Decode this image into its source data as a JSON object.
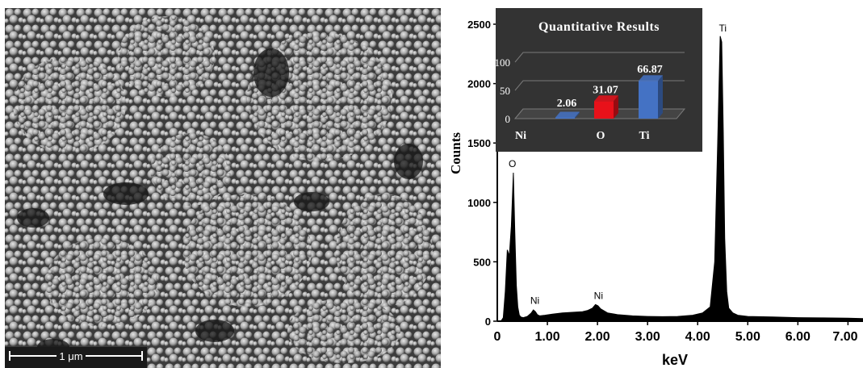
{
  "sem_panel": {
    "scale_bar_label": "1 μm"
  },
  "chart_data": [
    {
      "type": "line",
      "xlabel": "keV",
      "ylabel": "Counts",
      "xlim": [
        0,
        7.3
      ],
      "ylim": [
        0,
        2500
      ],
      "x_ticks": [
        "1.00",
        "2.00",
        "3.00",
        "4.00",
        "5.00",
        "6.00",
        "7.00"
      ],
      "y_ticks": [
        "0",
        "500",
        "1000",
        "1500",
        "2000",
        "2500"
      ],
      "fill": "#000000",
      "series": [
        {
          "x": [
            0.0,
            0.08,
            0.12,
            0.16,
            0.2,
            0.24,
            0.28,
            0.32,
            0.35,
            0.38,
            0.41,
            0.44,
            0.47,
            0.52,
            0.6,
            0.68,
            0.72,
            0.76,
            0.8,
            0.85,
            0.95,
            1.1,
            1.3,
            1.5,
            1.7,
            1.8,
            1.9,
            1.96,
            2.01,
            2.06,
            2.12,
            2.2,
            2.4,
            2.7,
            3.0,
            3.3,
            3.6,
            3.9,
            4.1,
            4.25,
            4.34,
            4.4,
            4.45,
            4.48,
            4.51,
            4.54,
            4.58,
            4.62,
            4.7,
            4.8,
            5.0,
            5.5,
            6.0,
            6.5,
            7.0,
            7.3
          ],
          "y": [
            0,
            5,
            30,
            250,
            600,
            550,
            800,
            1250,
            750,
            300,
            120,
            50,
            35,
            30,
            40,
            70,
            95,
            80,
            55,
            45,
            50,
            60,
            70,
            75,
            80,
            90,
            110,
            140,
            130,
            105,
            90,
            70,
            55,
            45,
            40,
            38,
            40,
            50,
            70,
            120,
            500,
            1500,
            2400,
            2350,
            1600,
            700,
            250,
            110,
            70,
            50,
            40,
            35,
            30,
            28,
            25,
            22
          ]
        }
      ],
      "annotations": [
        {
          "text": "O",
          "x": 0.3,
          "y": 1270
        },
        {
          "text": "Ni",
          "x": 0.75,
          "y": 120
        },
        {
          "text": "Ni",
          "x": 2.02,
          "y": 160
        },
        {
          "text": "Ti",
          "x": 4.5,
          "y": 2410
        }
      ]
    },
    {
      "type": "bar",
      "title": "Quantitative Results",
      "categories": [
        "Ni",
        "O",
        "Ti"
      ],
      "values": [
        2.06,
        31.07,
        66.87
      ],
      "value_labels": [
        "2.06",
        "31.07",
        "66.87"
      ],
      "colors": [
        "#4472c4",
        "#e8111a",
        "#4472c4"
      ],
      "ylim": [
        0,
        100
      ],
      "y_ticks": [
        "0",
        "50",
        "100"
      ]
    }
  ]
}
